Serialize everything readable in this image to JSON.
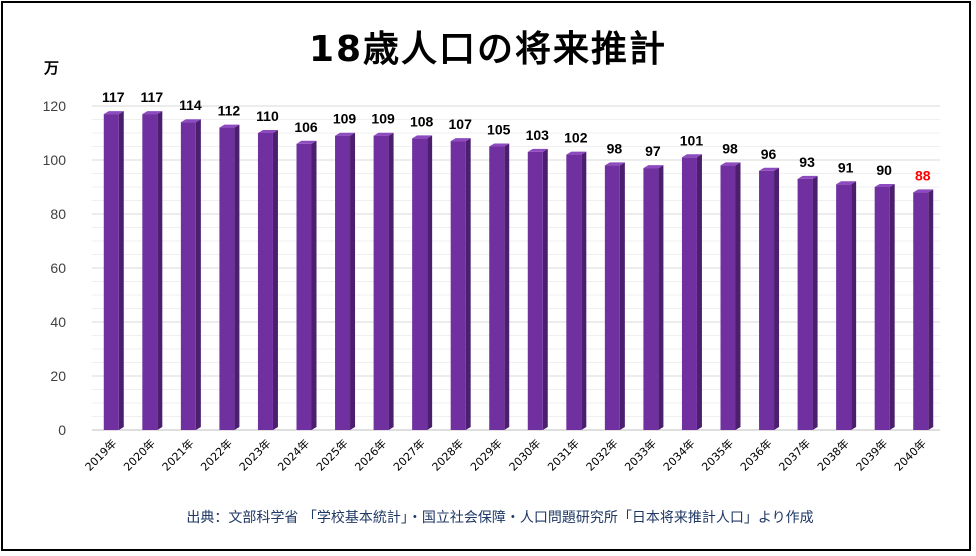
{
  "chart_data": {
    "type": "bar",
    "title": "18歳人口の将来推計",
    "unit_label": "万",
    "categories": [
      "2019年",
      "2020年",
      "2021年",
      "2022年",
      "2023年",
      "2024年",
      "2025年",
      "2026年",
      "2027年",
      "2028年",
      "2029年",
      "2030年",
      "2031年",
      "2032年",
      "2033年",
      "2034年",
      "2035年",
      "2036年",
      "2037年",
      "2038年",
      "2039年",
      "2040年"
    ],
    "values": [
      117,
      117,
      114,
      112,
      110,
      106,
      109,
      109,
      108,
      107,
      105,
      103,
      102,
      98,
      97,
      101,
      98,
      96,
      93,
      91,
      90,
      88
    ],
    "ylim": [
      0,
      120
    ],
    "yticks": [
      0,
      20,
      40,
      60,
      80,
      100,
      120
    ],
    "grid": true,
    "legend": "none",
    "bar_color": "#7030a0",
    "label_color": "#000000",
    "highlight_label_color": "#ff0000",
    "highlight_index": 21
  },
  "source_note": "出典：文部科学省 「学校基本統計」・国立社会保障・人口問題研究所「日本将来推計人口」より作成"
}
